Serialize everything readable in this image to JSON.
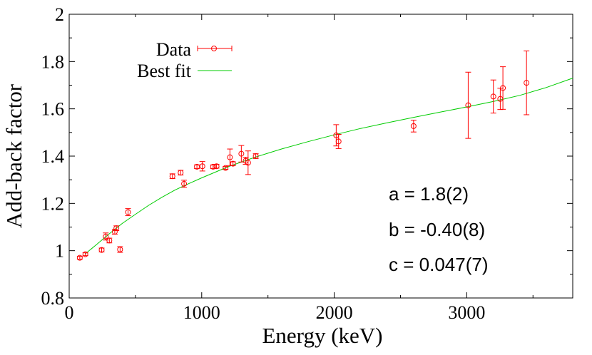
{
  "chart_data": {
    "type": "scatter",
    "title": "",
    "xlabel": "Energy (keV)",
    "ylabel": "Add-back factor",
    "xlim": [
      0,
      3800
    ],
    "ylim": [
      0.8,
      2.0
    ],
    "xticks": [
      0,
      1000,
      2000,
      3000
    ],
    "yticks": [
      0.8,
      1.0,
      1.2,
      1.4,
      1.6,
      1.8,
      2.0
    ],
    "xtick_labels": [
      "0",
      "1000",
      "2000",
      "3000"
    ],
    "ytick_labels": [
      "0.8",
      "1",
      "1.2",
      "1.4",
      "1.6",
      "1.8",
      "2"
    ],
    "legend_position": "top-left",
    "series": [
      {
        "name": "Data",
        "kind": "points-with-errorbars",
        "color": "#ff0000",
        "points": [
          {
            "x": 80,
            "y": 0.97,
            "err": 0.006
          },
          {
            "x": 122,
            "y": 0.985,
            "err": 0.006
          },
          {
            "x": 245,
            "y": 1.003,
            "err": 0.008
          },
          {
            "x": 276,
            "y": 1.06,
            "err": 0.015
          },
          {
            "x": 303,
            "y": 1.043,
            "err": 0.01
          },
          {
            "x": 344,
            "y": 1.08,
            "err": 0.01
          },
          {
            "x": 356,
            "y": 1.095,
            "err": 0.01
          },
          {
            "x": 384,
            "y": 1.005,
            "err": 0.012
          },
          {
            "x": 444,
            "y": 1.163,
            "err": 0.015
          },
          {
            "x": 779,
            "y": 1.315,
            "err": 0.01
          },
          {
            "x": 841,
            "y": 1.33,
            "err": 0.01
          },
          {
            "x": 867,
            "y": 1.283,
            "err": 0.015
          },
          {
            "x": 964,
            "y": 1.355,
            "err": 0.008
          },
          {
            "x": 1005,
            "y": 1.357,
            "err": 0.02
          },
          {
            "x": 1086,
            "y": 1.355,
            "err": 0.008
          },
          {
            "x": 1112,
            "y": 1.357,
            "err": 0.008
          },
          {
            "x": 1213,
            "y": 1.395,
            "err": 0.035
          },
          {
            "x": 1236,
            "y": 1.368,
            "err": 0.008
          },
          {
            "x": 1299,
            "y": 1.41,
            "err": 0.035
          },
          {
            "x": 1332,
            "y": 1.38,
            "err": 0.015
          },
          {
            "x": 1408,
            "y": 1.4,
            "err": 0.01
          },
          {
            "x": 1350,
            "y": 1.372,
            "err": 0.05
          },
          {
            "x": 1180,
            "y": 1.35,
            "err": 0.006
          },
          {
            "x": 2015,
            "y": 1.488,
            "err": 0.045
          },
          {
            "x": 2033,
            "y": 1.462,
            "err": 0.03
          },
          {
            "x": 2599,
            "y": 1.527,
            "err": 0.025
          },
          {
            "x": 3011,
            "y": 1.615,
            "err": 0.14
          },
          {
            "x": 3201,
            "y": 1.652,
            "err": 0.07
          },
          {
            "x": 3253,
            "y": 1.642,
            "err": 0.045
          },
          {
            "x": 3273,
            "y": 1.688,
            "err": 0.09
          },
          {
            "x": 3451,
            "y": 1.71,
            "err": 0.135
          }
        ]
      },
      {
        "name": "Best fit",
        "kind": "line",
        "color": "#00cc00",
        "x": [
          120,
          200,
          300,
          400,
          500,
          600,
          700,
          800,
          900,
          1000,
          1200,
          1400,
          1600,
          1800,
          2000,
          2200,
          2400,
          2600,
          2800,
          3000,
          3200,
          3400,
          3600,
          3800
        ],
        "y": [
          0.986,
          1.023,
          1.07,
          1.115,
          1.154,
          1.192,
          1.226,
          1.257,
          1.283,
          1.308,
          1.355,
          1.395,
          1.43,
          1.461,
          1.49,
          1.517,
          1.541,
          1.564,
          1.586,
          1.608,
          1.631,
          1.657,
          1.69,
          1.73
        ]
      }
    ],
    "annotations": [
      "a = 1.8(2)",
      "b = -0.40(8)",
      "c = 0.047(7)"
    ]
  }
}
